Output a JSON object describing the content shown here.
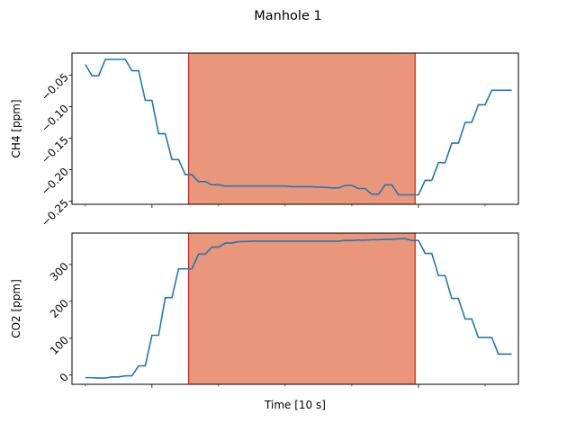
{
  "figure": {
    "title": "Manhole 1",
    "xlabel": "Time [10 s]",
    "colors": {
      "line": "#1f77b4",
      "span_fill": "#e9967a",
      "span_edge": "#e31a1c",
      "frame": "#000000"
    }
  },
  "chart_data": [
    {
      "type": "line",
      "title": "Manhole 1",
      "ylabel": "CH4 [ppm]",
      "xlabel": "",
      "xlim": [
        -2,
        65
      ],
      "ylim": [
        -0.255,
        -0.015
      ],
      "yticks": [
        -0.05,
        -0.1,
        -0.15,
        -0.2,
        -0.25
      ],
      "ytick_labels": [
        "−0.05",
        "−0.10",
        "−0.15",
        "−0.20",
        "−0.25"
      ],
      "ytick_rotation": 45,
      "x_major_ticks": [
        10,
        50
      ],
      "x_minor_ticks": [
        0,
        20,
        30,
        40,
        60
      ],
      "grid": false,
      "highlight_span": [
        15.5,
        49.5
      ],
      "x": [
        0,
        1,
        2,
        3,
        4,
        5,
        6,
        7,
        8,
        9,
        10,
        11,
        12,
        13,
        14,
        15,
        16,
        17,
        18,
        19,
        20,
        21,
        22,
        23,
        24,
        25,
        26,
        27,
        28,
        29,
        30,
        31,
        32,
        33,
        34,
        35,
        36,
        37,
        38,
        39,
        40,
        41,
        42,
        43,
        44,
        45,
        46,
        47,
        48,
        49,
        50,
        51,
        52,
        53,
        54,
        55,
        56,
        57,
        58,
        59,
        60,
        61,
        62,
        63,
        64
      ],
      "series": [
        {
          "name": "",
          "values": [
            -0.033,
            -0.051,
            -0.051,
            -0.025,
            -0.025,
            -0.025,
            -0.025,
            -0.043,
            -0.043,
            -0.09,
            -0.09,
            -0.143,
            -0.143,
            -0.184,
            -0.184,
            -0.208,
            -0.208,
            -0.219,
            -0.219,
            -0.224,
            -0.224,
            -0.226,
            -0.226,
            -0.226,
            -0.226,
            -0.226,
            -0.226,
            -0.226,
            -0.226,
            -0.226,
            -0.226,
            -0.227,
            -0.227,
            -0.227,
            -0.227,
            -0.228,
            -0.228,
            -0.229,
            -0.229,
            -0.225,
            -0.225,
            -0.23,
            -0.23,
            -0.239,
            -0.239,
            -0.224,
            -0.224,
            -0.24,
            -0.24,
            -0.24,
            -0.24,
            -0.217,
            -0.217,
            -0.189,
            -0.189,
            -0.158,
            -0.158,
            -0.125,
            -0.125,
            -0.097,
            -0.097,
            -0.074,
            -0.074,
            -0.074,
            -0.074
          ]
        }
      ]
    },
    {
      "type": "line",
      "title": "",
      "ylabel": "CO2 [ppm]",
      "xlabel": "Time [10 s]",
      "xlim": [
        -2,
        65
      ],
      "ylim": [
        -25,
        385
      ],
      "yticks": [
        0,
        100,
        200,
        300
      ],
      "ytick_labels": [
        "0",
        "100",
        "200",
        "300"
      ],
      "ytick_rotation": 45,
      "x_major_ticks": [
        10,
        50
      ],
      "x_minor_ticks": [
        0,
        20,
        30,
        40,
        60
      ],
      "grid": false,
      "highlight_span": [
        15.5,
        49.5
      ],
      "x": [
        0,
        1,
        2,
        3,
        4,
        5,
        6,
        7,
        8,
        9,
        10,
        11,
        12,
        13,
        14,
        15,
        16,
        17,
        18,
        19,
        20,
        21,
        22,
        23,
        24,
        25,
        26,
        27,
        28,
        29,
        30,
        31,
        32,
        33,
        34,
        35,
        36,
        37,
        38,
        39,
        40,
        41,
        42,
        43,
        44,
        45,
        46,
        47,
        48,
        49,
        50,
        51,
        52,
        53,
        54,
        55,
        56,
        57,
        58,
        59,
        60,
        61,
        62,
        63,
        64
      ],
      "series": [
        {
          "name": "",
          "values": [
            -7,
            -7,
            -8,
            -8,
            -5,
            -5,
            -2,
            -2,
            25,
            25,
            108,
            108,
            210,
            210,
            288,
            288,
            288,
            328,
            328,
            347,
            347,
            358,
            358,
            362,
            362,
            363,
            363,
            363,
            363,
            363,
            363,
            363,
            363,
            363,
            363,
            363,
            363,
            363,
            363,
            365,
            365,
            366,
            366,
            367,
            367,
            368,
            368,
            370,
            370,
            365,
            365,
            330,
            330,
            270,
            270,
            208,
            208,
            152,
            152,
            102,
            102,
            102,
            57,
            57,
            57
          ]
        }
      ]
    }
  ]
}
